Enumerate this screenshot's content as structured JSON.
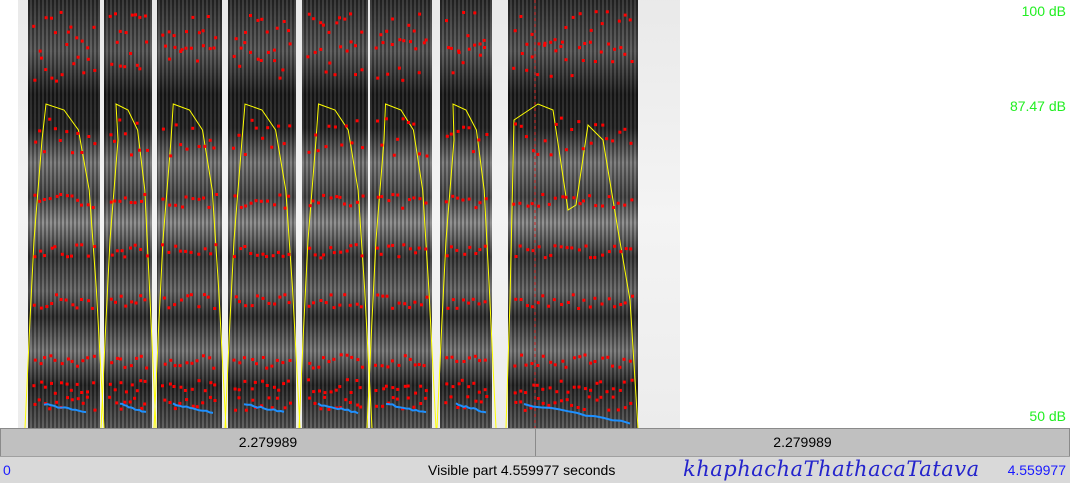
{
  "spectrogram": {
    "db_top": "100 dB",
    "db_mid": "87.47 dB",
    "db_bottom": "50 dB",
    "colors": {
      "background": "#ffffff",
      "formant_dots": "#ff0000",
      "intensity_curve": "#ffff00",
      "pitch_curve": "#1e90ff",
      "db_labels": "#22ee22",
      "cursor_line": "#cc2222"
    }
  },
  "selection": {
    "left_duration": "2.279989",
    "right_duration": "2.279989"
  },
  "info": {
    "start_time": "0",
    "visible_part": "Visible part 4.559977 seconds",
    "transcript": "khaphachaThathacaTatava",
    "end_time": "4.559977"
  }
}
